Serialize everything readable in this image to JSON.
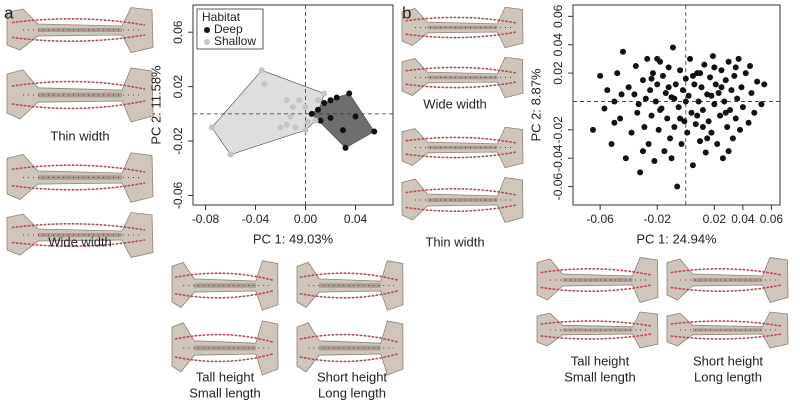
{
  "panels": [
    "a",
    "b"
  ],
  "shape_labels": [
    [
      "Thin width"
    ],
    [
      "Wide width"
    ],
    [
      "Tall height",
      "Small length"
    ],
    [
      "Short height",
      "Long length"
    ],
    [
      "Wide width"
    ],
    [
      "Thin width"
    ],
    [
      "Tall height",
      "Small length"
    ],
    [
      "Short height",
      "Long length"
    ]
  ],
  "chart_data": [
    {
      "type": "scatter",
      "xlabel": "PC 1: 49.03%",
      "ylabel": "PC 2: 11.58%",
      "legend_title": "Habitat",
      "legend": "upper left",
      "hulls": true,
      "zero_lines": true,
      "xlim": [
        -0.09,
        0.07
      ],
      "ylim": [
        -0.067,
        0.08
      ],
      "xticks": [
        -0.08,
        -0.04,
        {
          "value": 0,
          "label": "0.00"
        },
        0.04
      ],
      "yticks": [
        0.06,
        0.02,
        -0.02,
        -0.06
      ],
      "series": [
        {
          "name": "Deep",
          "color": "#111111",
          "hull_color": "#6e6e6e",
          "x": [
            0.005,
            0.01,
            0.015,
            0.02,
            0.025,
            0.035,
            0.04,
            0.055,
            0.03,
            0.032,
            0.02,
            0.012
          ],
          "values": [
            0.0,
            0.003,
            0.008,
            0.01,
            0.012,
            0.015,
            -0.002,
            -0.013,
            -0.012,
            -0.025,
            -0.003,
            -0.005
          ]
        },
        {
          "name": "Shallow",
          "color": "#c4c4c4",
          "hull_color": "#dedede",
          "x": [
            -0.035,
            -0.033,
            -0.075,
            -0.06,
            -0.015,
            -0.01,
            -0.005,
            -0.012,
            0.0,
            -0.008,
            -0.015,
            0.002,
            0.01,
            0.015,
            -0.02,
            0.0,
            0.008
          ],
          "values": [
            0.032,
            0.022,
            -0.01,
            -0.03,
            0.01,
            0.005,
            0.01,
            -0.002,
            0.005,
            -0.01,
            -0.008,
            -0.006,
            0.01,
            0.015,
            -0.01,
            -0.012,
            -0.005
          ]
        }
      ]
    },
    {
      "type": "scatter",
      "xlabel": "PC 1: 24.94%",
      "ylabel": "PC 2: 8.87%",
      "zero_lines": true,
      "color": "#111111",
      "xlim": [
        -0.079,
        0.066
      ],
      "ylim": [
        -0.073,
        0.068
      ],
      "xticks": [
        -0.06,
        -0.02,
        0.02,
        0.04,
        0.06
      ],
      "yticks": [
        0.06,
        0.04,
        0.02,
        -0.02,
        -0.04,
        -0.06
      ],
      "x": [
        -0.065,
        -0.06,
        -0.057,
        -0.055,
        -0.052,
        -0.05,
        -0.048,
        -0.046,
        -0.044,
        -0.042,
        -0.04,
        -0.038,
        -0.036,
        -0.035,
        -0.034,
        -0.032,
        -0.03,
        -0.029,
        -0.028,
        -0.027,
        -0.026,
        -0.025,
        -0.024,
        -0.023,
        -0.022,
        -0.021,
        -0.02,
        -0.019,
        -0.018,
        -0.017,
        -0.016,
        -0.015,
        -0.014,
        -0.013,
        -0.012,
        -0.011,
        -0.01,
        -0.009,
        -0.008,
        -0.007,
        -0.006,
        -0.005,
        -0.004,
        -0.003,
        -0.002,
        -0.001,
        0.0,
        0.001,
        0.002,
        0.003,
        0.004,
        0.005,
        0.006,
        0.007,
        0.008,
        0.009,
        0.01,
        0.011,
        0.012,
        0.013,
        0.014,
        0.015,
        0.016,
        0.017,
        0.018,
        0.019,
        0.02,
        0.021,
        0.022,
        0.023,
        0.024,
        0.025,
        0.026,
        0.027,
        0.028,
        0.029,
        0.03,
        0.031,
        0.032,
        0.033,
        0.034,
        0.035,
        0.036,
        0.037,
        0.038,
        0.039,
        0.04,
        0.042,
        0.044,
        0.046,
        0.048,
        0.05,
        0.053,
        0.055,
        -0.045,
        -0.033,
        -0.018,
        -0.008,
        0.005,
        0.015,
        0.025,
        0.035,
        -0.02,
        -0.01,
        0.0,
        0.01,
        0.02,
        -0.03,
        0.03,
        0.045,
        -0.05,
        -0.012,
        0.008,
        0.018,
        -0.004,
        0.012,
        -0.024,
        0.028
      ],
      "values": [
        -0.02,
        0.018,
        -0.005,
        0.008,
        -0.03,
        0.0,
        0.02,
        -0.012,
        0.035,
        -0.04,
        0.01,
        -0.022,
        0.005,
        0.025,
        -0.008,
        -0.05,
        0.015,
        -0.018,
        0.002,
        0.03,
        -0.03,
        0.008,
        -0.01,
        0.02,
        -0.042,
        0.0,
        0.012,
        -0.02,
        0.028,
        -0.005,
        0.018,
        -0.035,
        0.006,
        -0.012,
        0.024,
        -0.026,
        0.003,
        0.038,
        -0.018,
        0.012,
        -0.06,
        -0.004,
        0.022,
        -0.03,
        0.008,
        -0.014,
        0.016,
        -0.022,
        0.004,
        0.03,
        -0.008,
        -0.045,
        0.012,
        -0.016,
        0.02,
        0.0,
        -0.028,
        0.01,
        -0.006,
        0.026,
        -0.036,
        0.005,
        -0.014,
        0.017,
        -0.022,
        0.032,
        -0.002,
        0.012,
        -0.03,
        0.006,
        -0.01,
        0.022,
        -0.04,
        0.0,
        0.015,
        -0.018,
        0.028,
        -0.006,
        0.008,
        -0.026,
        0.018,
        -0.012,
        0.002,
        0.03,
        -0.02,
        0.01,
        -0.004,
        0.02,
        -0.015,
        0.006,
        -0.008,
        0.014,
        -0.002,
        0.012,
        0.005,
        -0.002,
        -0.006,
        0.002,
        0.018,
        -0.026,
        0.01,
        0.024,
        0.03,
        -0.04,
        0.0,
        0.02,
        0.024,
        -0.035,
        -0.035,
        0.025,
        -0.015,
        0.01,
        -0.01,
        0.004,
        -0.012,
        -0.018,
        0.016,
        -0.008
      ]
    }
  ]
}
